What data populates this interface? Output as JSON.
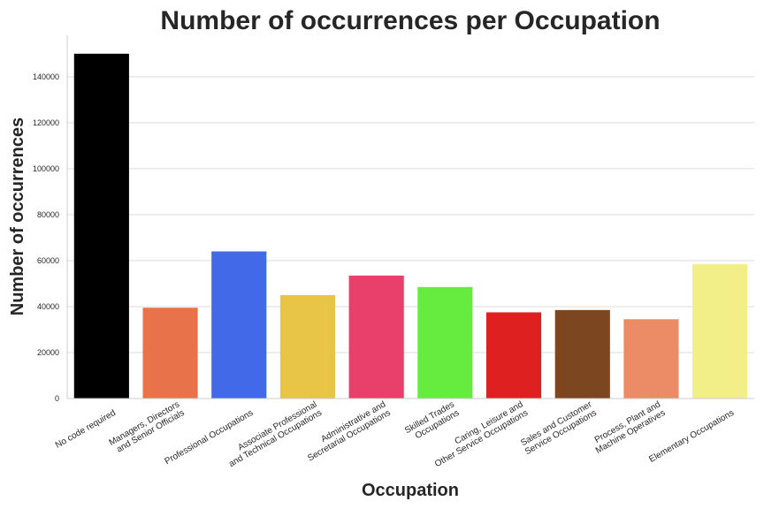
{
  "chart_data": {
    "type": "bar",
    "title": "Number of occurrences per Occupation",
    "xlabel": "Occupation",
    "ylabel": "Number of occurrences",
    "categories": [
      [
        "No code required"
      ],
      [
        "Managers, Directors",
        "and Senior Officials"
      ],
      [
        "Professional Occupations"
      ],
      [
        "Associate Professional",
        "and Technical Occupations"
      ],
      [
        "Administrative and",
        "Secretarial Occupations"
      ],
      [
        "Skilled Trades",
        "Occupations"
      ],
      [
        "Caring, Leisure and",
        "Other Service Occupations"
      ],
      [
        "Sales and Customer",
        "Service Occupations"
      ],
      [
        "Process, Plant and",
        "Machine Operatives"
      ],
      [
        "Elementary Occupations"
      ]
    ],
    "values": [
      150000,
      39500,
      64000,
      45000,
      53500,
      48500,
      37500,
      38500,
      34500,
      58500
    ],
    "colors": [
      "#000000",
      "#e8734a",
      "#4169e8",
      "#e8c547",
      "#e8406a",
      "#66ec3e",
      "#df2020",
      "#7b4620",
      "#ec8c66",
      "#f2ee88"
    ],
    "ylim": [
      0,
      158000
    ],
    "yticks": [
      "0",
      "20000",
      "40000",
      "60000",
      "80000",
      "100000",
      "120000",
      "140000"
    ],
    "ytick_values": [
      0,
      20000,
      40000,
      60000,
      80000,
      100000,
      120000,
      140000
    ],
    "grid": "horizontal"
  }
}
